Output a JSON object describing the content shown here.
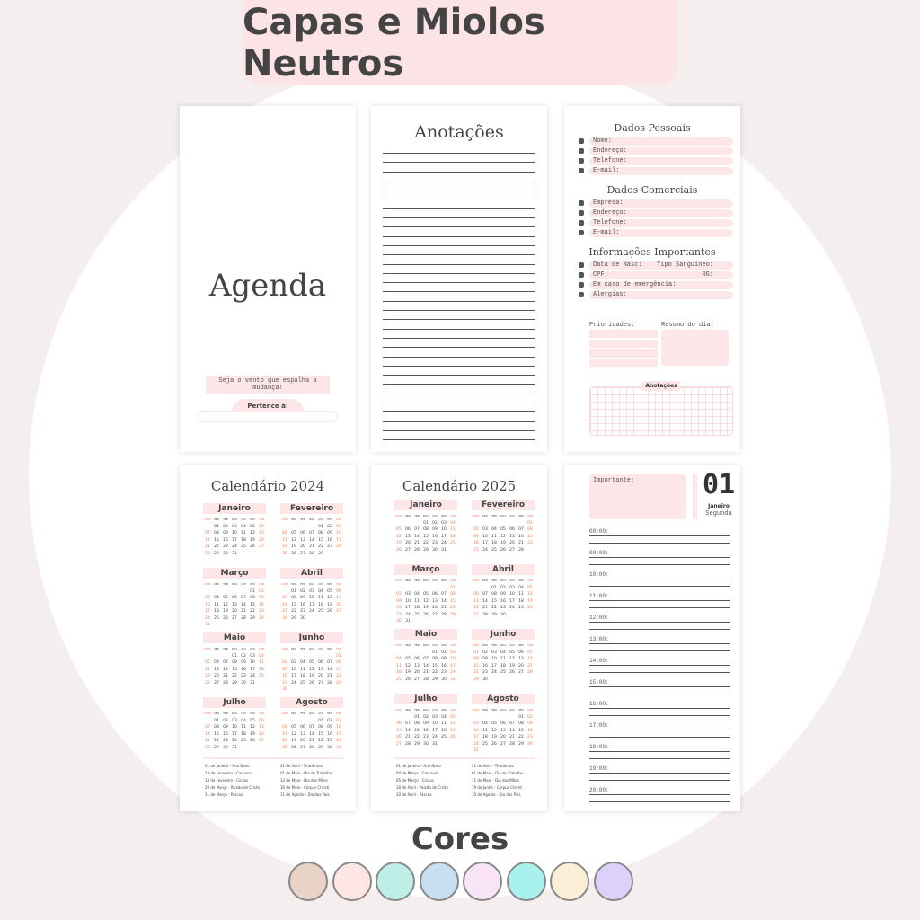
{
  "title": "Capas e Miolos Neutros",
  "cover": {
    "title": "Agenda",
    "quote": "Seja o vento que espalha a mudança!",
    "owner_label": "Pertence à:"
  },
  "notes": {
    "title": "Anotações"
  },
  "personal": {
    "pessoais_title": "Dados Pessoais",
    "pessoais": [
      "Nome:",
      "Endereço:",
      "Telefone:",
      "E-mail:"
    ],
    "comerciais_title": "Dados Comerciais",
    "comerciais": [
      "Empresa:",
      "Endereço:",
      "Telefone:",
      "E-mail:"
    ],
    "info_title": "Informações Importantes",
    "info": [
      [
        "Data de Nasc:",
        "Tipo Sanguíneo:"
      ],
      [
        "CPF:",
        "RG:"
      ],
      [
        "Em caso de emergência:",
        ""
      ],
      [
        "Alergias:",
        ""
      ]
    ],
    "prioridades": "Prioridades:",
    "resumo": "Resumo do dia:",
    "anotacoes": "Anotações"
  },
  "weekdays": [
    "DOM",
    "SEG",
    "TER",
    "QUA",
    "QUI",
    "SEX",
    "SAB"
  ],
  "months": [
    "Janeiro",
    "Fevereiro",
    "Março",
    "Abril",
    "Maio",
    "Junho",
    "Julho",
    "Agosto"
  ],
  "calendars": [
    {
      "title": "Calendário 2024",
      "year": 2024,
      "holidays": [
        "01 de Janeiro - Ano Novo",
        "13 de Fevereiro - Carnaval",
        "14 de Fevereiro - Cinzas",
        "29 de Março - Paixão de Cristo",
        "31 de Março - Páscoa",
        "21 de Abril - Tiradentes",
        "01 de Maio - Dia do Trabalho",
        "12 de Maio - Dia das Mães",
        "30 de Maio - Corpus Christi",
        "11 de Agosto - Dia dos Pais"
      ]
    },
    {
      "title": "Calendário 2025",
      "year": 2025,
      "holidays": [
        "01 de Janeiro - Ano Novo",
        "04 de Março - Carnaval",
        "05 de Março - Cinzas",
        "18 de Abril - Paixão de Cristo",
        "20 de Abril - Páscoa",
        "21 de Abril - Tiradentes",
        "01 de Maio - Dia do Trabalho",
        "11 de Maio - Dia das Mães",
        "19 de Junho - Corpus Christi",
        "10 de Agosto - Dia dos Pais"
      ]
    }
  ],
  "daily": {
    "important": "Importante:",
    "day": "01",
    "month": "Janeiro",
    "weekday": "Segunda",
    "hours": [
      "08:00:",
      "09:00:",
      "10:00:",
      "11:00:",
      "12:00:",
      "13:00:",
      "14:00:",
      "15:00:",
      "16:00:",
      "17:00:",
      "18:00:",
      "19:00:",
      "20:00:"
    ]
  },
  "colors_title": "Cores",
  "colors": [
    "#e9d2c6",
    "#fde6e4",
    "#bfeee6",
    "#c7dff0",
    "#f8e4f6",
    "#a8f1ec",
    "#fdeed7",
    "#ddd0fb"
  ],
  "accent": "#f07a4a"
}
